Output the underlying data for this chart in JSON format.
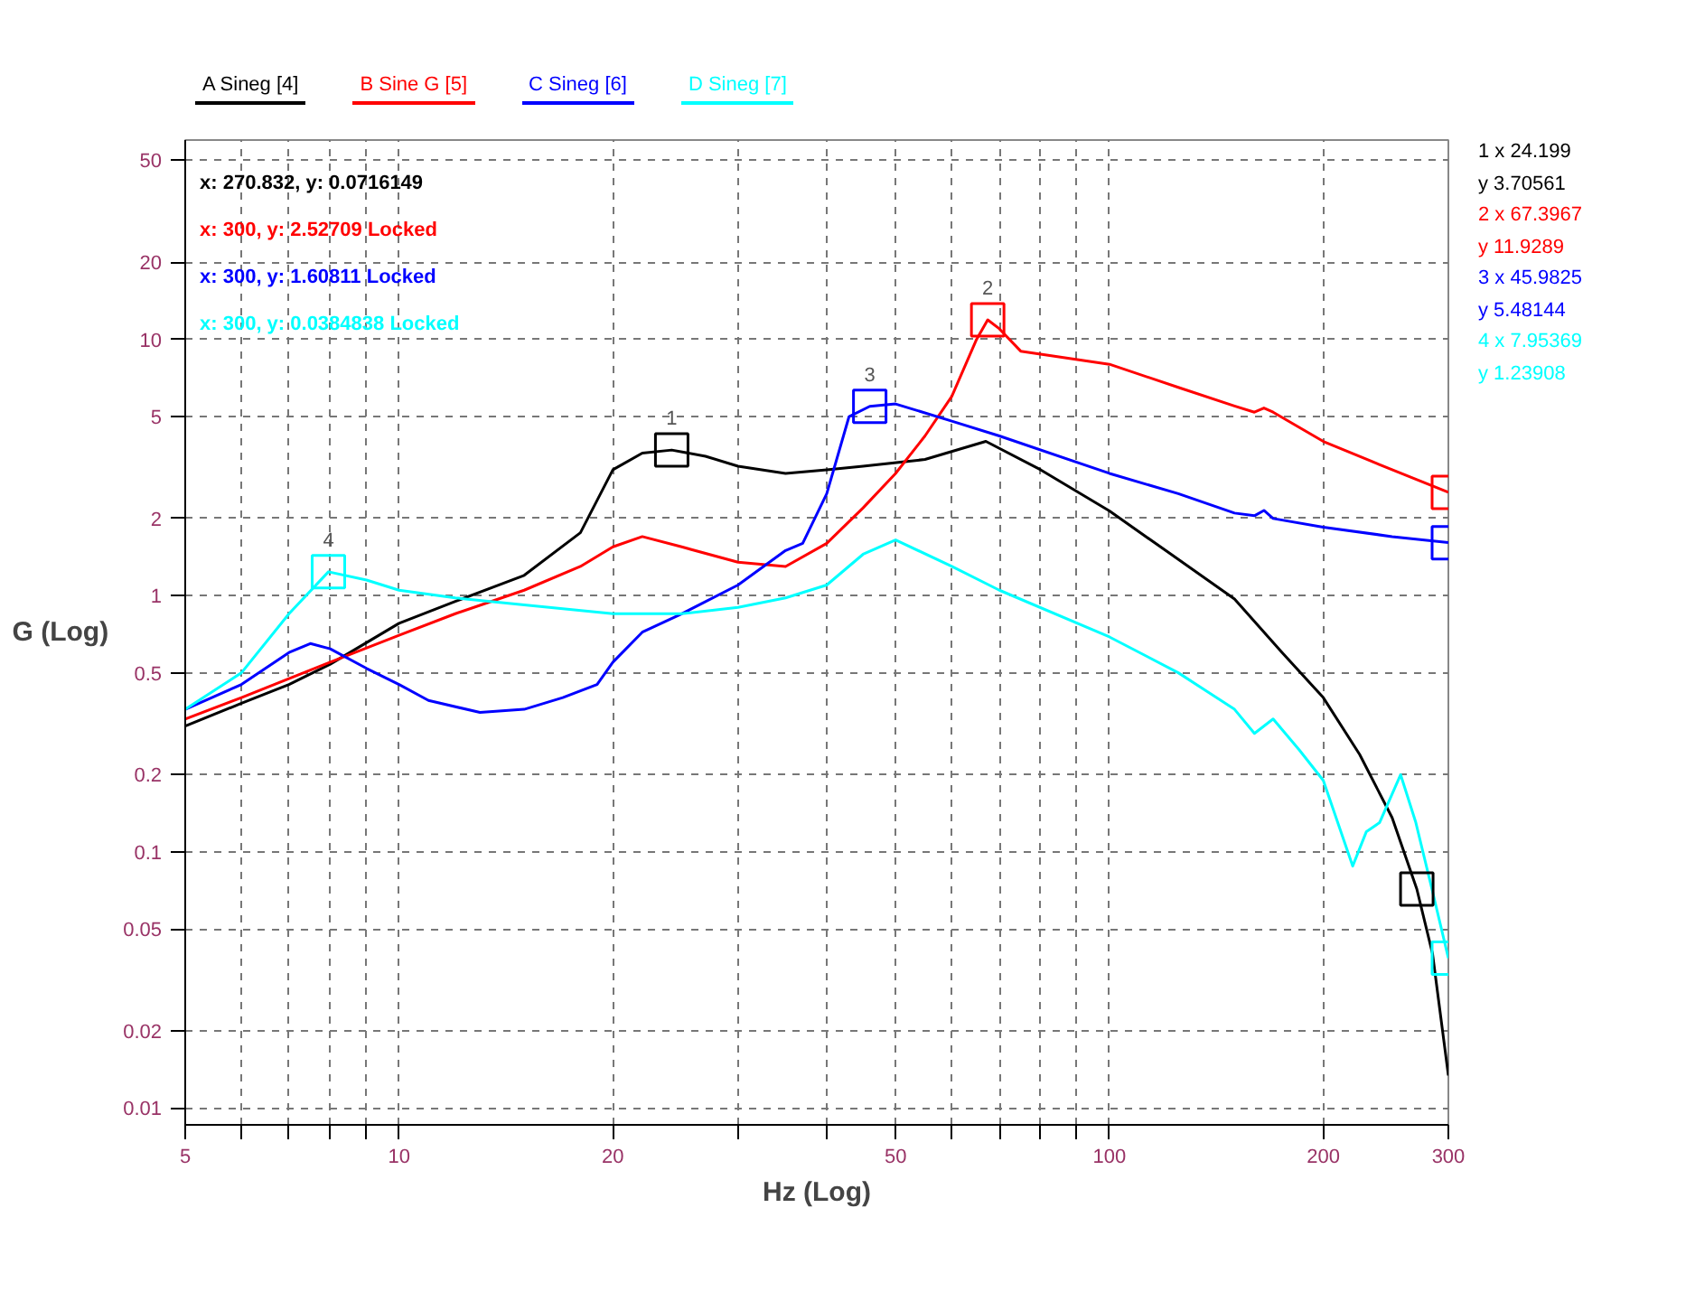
{
  "chart_data": {
    "type": "line",
    "xlabel": "Hz (Log)",
    "ylabel": "G (Log)",
    "log": "xy",
    "grid": true,
    "legend": "top",
    "line_style": "solid",
    "marker": "none",
    "xlim": [
      5,
      300
    ],
    "ylim": [
      0.0086,
      60
    ],
    "xticks": [
      5,
      {
        "value": 6,
        "label": null
      },
      {
        "value": 7,
        "label": null
      },
      {
        "value": 8,
        "label": null
      },
      {
        "value": 9,
        "label": null
      },
      10,
      20,
      {
        "value": 30,
        "label": null
      },
      {
        "value": 40,
        "label": null
      },
      50,
      {
        "value": 60,
        "label": null
      },
      {
        "value": 70,
        "label": null
      },
      {
        "value": 80,
        "label": null
      },
      {
        "value": 90,
        "label": null
      },
      100,
      200,
      300
    ],
    "yticks": [
      0.01,
      0.02,
      0.05,
      0.1,
      0.2,
      0.5,
      1,
      2,
      5,
      10,
      20,
      50
    ],
    "series": [
      {
        "name": "A Sineg [4]",
        "color": "#000000",
        "x": [
          5,
          6,
          7,
          8,
          10,
          12,
          15,
          18,
          20,
          22,
          24.199,
          27,
          30,
          35,
          40,
          45,
          55,
          67,
          80,
          100,
          120,
          150,
          175,
          200,
          225,
          250,
          270.832,
          285,
          300
        ],
        "values": [
          0.31,
          0.38,
          0.45,
          0.54,
          0.78,
          0.95,
          1.2,
          1.76,
          3.1,
          3.6,
          3.7,
          3.5,
          3.2,
          3.0,
          3.1,
          3.2,
          3.4,
          4.0,
          3.1,
          2.14,
          1.5,
          0.97,
          0.6,
          0.4,
          0.24,
          0.136,
          0.0716,
          0.04,
          0.0134
        ]
      },
      {
        "name": "B Sine G [5]",
        "color": "#ff0000",
        "x": [
          5,
          6,
          8,
          10,
          12,
          15,
          18,
          20,
          22,
          25,
          30,
          35,
          40,
          45,
          50,
          55,
          60,
          65,
          67.3967,
          70,
          75,
          100,
          125,
          150,
          160,
          165,
          170,
          200,
          250,
          300
        ],
        "values": [
          0.33,
          0.4,
          0.55,
          0.7,
          0.85,
          1.05,
          1.3,
          1.55,
          1.7,
          1.55,
          1.35,
          1.3,
          1.6,
          2.2,
          3.0,
          4.2,
          6.0,
          10,
          11.9289,
          11,
          9,
          8,
          6.5,
          5.5,
          5.2,
          5.4,
          5.2,
          4.0,
          3.1,
          2.53
        ]
      },
      {
        "name": "C Sineg [6]",
        "color": "#0000ff",
        "x": [
          5,
          6,
          7,
          7.5,
          8,
          9,
          10,
          11,
          13,
          15,
          17,
          19,
          20,
          22,
          25,
          30,
          35,
          37,
          40,
          43,
          45.9825,
          50,
          60,
          70,
          100,
          125,
          150,
          160,
          165,
          170,
          200,
          250,
          300
        ],
        "values": [
          0.36,
          0.45,
          0.6,
          0.65,
          0.62,
          0.52,
          0.45,
          0.39,
          0.35,
          0.36,
          0.4,
          0.45,
          0.55,
          0.72,
          0.85,
          1.1,
          1.5,
          1.6,
          2.5,
          5.0,
          5.48,
          5.6,
          4.8,
          4.2,
          3.0,
          2.5,
          2.1,
          2.05,
          2.15,
          2.0,
          1.85,
          1.7,
          1.61
        ]
      },
      {
        "name": "D Sineg [7]",
        "color": "#00ffff",
        "x": [
          5,
          6,
          7,
          7.95369,
          9,
          10,
          12,
          15,
          20,
          25,
          30,
          35,
          40,
          45,
          50,
          60,
          70,
          100,
          125,
          150,
          160,
          170,
          185,
          200,
          220,
          230,
          240,
          257,
          270,
          285,
          300
        ],
        "values": [
          0.36,
          0.5,
          0.85,
          1.23908,
          1.15,
          1.05,
          0.98,
          0.92,
          0.85,
          0.85,
          0.9,
          0.98,
          1.1,
          1.45,
          1.65,
          1.3,
          1.05,
          0.69,
          0.5,
          0.36,
          0.29,
          0.33,
          0.25,
          0.19,
          0.088,
          0.12,
          0.13,
          0.2,
          0.13,
          0.07,
          0.0385
        ]
      },
      {
        "type": "scatter",
        "marker": "square",
        "color": "#000000",
        "x": [
          24.199,
          270.832
        ],
        "values": [
          3.70561,
          0.0716149
        ]
      },
      {
        "type": "scatter",
        "marker": "square",
        "color": "#ff0000",
        "x": [
          67.3967,
          300
        ],
        "values": [
          11.9289,
          2.52709
        ]
      },
      {
        "type": "scatter",
        "marker": "square",
        "color": "#0000ff",
        "x": [
          45.9825,
          300
        ],
        "values": [
          5.48144,
          1.60811
        ]
      },
      {
        "type": "scatter",
        "marker": "square",
        "color": "#00ffff",
        "x": [
          7.95369,
          300
        ],
        "values": [
          1.23908,
          0.0384838
        ]
      }
    ],
    "annotations": [
      "x: 270.832, y: 0.0716149",
      "x: 300, y: 2.52709 Locked",
      "x: 300, y: 1.60811 Locked",
      "x: 300, y: 0.0384838 Locked",
      "1 x 24.199",
      "y 3.70561",
      "2 x 67.3967",
      "y 11.9289",
      "3 x 45.9825",
      "y 5.48144",
      "4 x 7.95369",
      "y 1.23908",
      {
        "text": "1",
        "x": 24.199,
        "y": 3.70561
      },
      {
        "text": "2",
        "x": 67.3967,
        "y": 11.9289
      },
      {
        "text": "3",
        "x": 45.9825,
        "y": 5.48144
      },
      {
        "text": "4",
        "x": 7.95369,
        "y": 1.23908
      }
    ]
  }
}
